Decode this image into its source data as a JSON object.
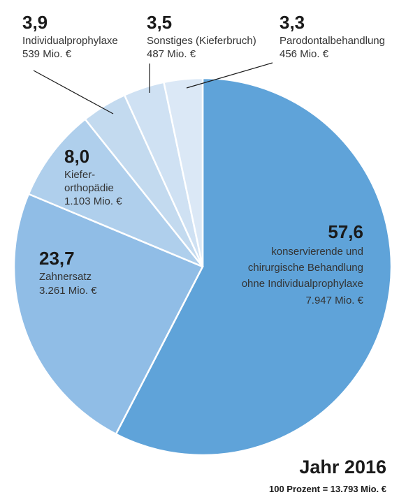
{
  "chart_data": {
    "type": "pie",
    "title": "Jahr 2016",
    "subtitle": "100 Prozent = 13.793 Mio. €",
    "slices": [
      {
        "pct": "57,6",
        "value": 57.6,
        "lines": [
          "konservierende und",
          "chirurgische Behandlung",
          "ohne Individualprophylaxe"
        ],
        "amount": "7.947 Mio. €",
        "color": "#5fa3d9"
      },
      {
        "pct": "23,7",
        "value": 23.7,
        "lines": [
          "Zahnersatz"
        ],
        "amount": "3.261 Mio. €",
        "color": "#90bde6"
      },
      {
        "pct": "8,0",
        "value": 8.0,
        "lines": [
          "Kiefer-",
          "orthopädie"
        ],
        "amount": "1.103 Mio. €",
        "color": "#afcfec"
      },
      {
        "pct": "3,9",
        "value": 3.9,
        "lines": [
          "Individualprophylaxe"
        ],
        "amount": "539 Mio. €",
        "color": "#c3daef"
      },
      {
        "pct": "3,5",
        "value": 3.5,
        "lines": [
          "Sonstiges (Kieferbruch)"
        ],
        "amount": "487 Mio. €",
        "color": "#cfe1f3"
      },
      {
        "pct": "3,3",
        "value": 3.3,
        "lines": [
          "Parodontalbehandlung"
        ],
        "amount": "456 Mio. €",
        "color": "#dbe8f6"
      }
    ]
  }
}
